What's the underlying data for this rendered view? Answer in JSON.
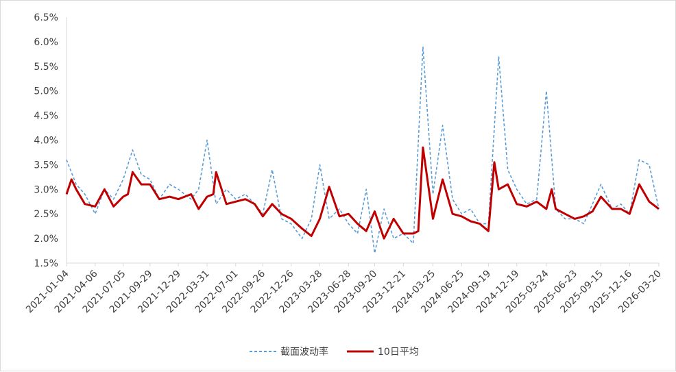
{
  "chart_data": {
    "type": "line",
    "title": "",
    "xlabel": "",
    "ylabel": "",
    "ylim": [
      0.015,
      0.065
    ],
    "y_format": "percent_1dp",
    "y_ticks": [
      "1.5%",
      "2.0%",
      "2.5%",
      "3.0%",
      "3.5%",
      "4.0%",
      "4.5%",
      "5.0%",
      "5.5%",
      "6.0%",
      "6.5%"
    ],
    "x_tick_labels": [
      "2021-01-04",
      "2021-04-06",
      "2021-07-05",
      "2021-09-29",
      "2021-12-29",
      "2022-03-31",
      "2022-07-01",
      "2022-09-26",
      "2022-12-26",
      "2023-03-28",
      "2023-06-28",
      "2023-09-20",
      "2023-12-21",
      "2024-03-25",
      "2024-06-25",
      "2024-09-19",
      "2024-12-19",
      "2025-03-24",
      "2025-06-23",
      "2025-09-15",
      "2025-12-16",
      "2026-03-20"
    ],
    "grid": false,
    "legend_position": "bottom",
    "series": [
      {
        "name": "截面波动率",
        "color": "#5b9bd5",
        "style": "dashed",
        "x": [
          "2021-01-04",
          "2021-02-04",
          "2021-03-04",
          "2021-04-06",
          "2021-05-06",
          "2021-06-04",
          "2021-07-05",
          "2021-08-04",
          "2021-09-01",
          "2021-09-29",
          "2021-10-29",
          "2021-12-01",
          "2021-12-29",
          "2022-02-08",
          "2022-03-04",
          "2022-03-31",
          "2022-04-29",
          "2022-06-01",
          "2022-07-01",
          "2022-08-01",
          "2022-08-31",
          "2022-09-26",
          "2022-10-26",
          "2022-11-25",
          "2022-12-26",
          "2023-01-30",
          "2023-03-01",
          "2023-03-28",
          "2023-04-27",
          "2023-05-30",
          "2023-06-28",
          "2023-07-27",
          "2023-08-24",
          "2023-09-20",
          "2023-10-20",
          "2023-11-20",
          "2023-12-21",
          "2024-01-22",
          "2024-02-22",
          "2024-03-25",
          "2024-04-25",
          "2024-05-27",
          "2024-06-25",
          "2024-07-24",
          "2024-08-22",
          "2024-09-19",
          "2024-10-22",
          "2024-11-20",
          "2024-12-19",
          "2025-01-20",
          "2025-02-21",
          "2025-03-24",
          "2025-04-23",
          "2025-05-23",
          "2025-06-23",
          "2025-07-22",
          "2025-08-19",
          "2025-09-15",
          "2025-10-21",
          "2025-11-18",
          "2025-12-16",
          "2026-01-16",
          "2026-02-17",
          "2026-03-20"
        ],
        "values": [
          0.036,
          0.031,
          0.029,
          0.025,
          0.03,
          0.028,
          0.032,
          0.038,
          0.033,
          0.032,
          0.028,
          0.031,
          0.03,
          0.028,
          0.03,
          0.04,
          0.027,
          0.03,
          0.028,
          0.029,
          0.027,
          0.025,
          0.034,
          0.024,
          0.023,
          0.02,
          0.024,
          0.035,
          0.024,
          0.026,
          0.023,
          0.021,
          0.03,
          0.017,
          0.026,
          0.02,
          0.021,
          0.019,
          0.059,
          0.029,
          0.043,
          0.028,
          0.025,
          0.026,
          0.023,
          0.023,
          0.057,
          0.034,
          0.03,
          0.027,
          0.028,
          0.05,
          0.026,
          0.024,
          0.024,
          0.023,
          0.027,
          0.031,
          0.026,
          0.027,
          0.025,
          0.036,
          0.035,
          0.026
        ]
      },
      {
        "name": "10日平均",
        "color": "#c00000",
        "style": "solid",
        "x": [
          "2021-01-04",
          "2021-01-20",
          "2021-02-04",
          "2021-03-04",
          "2021-04-06",
          "2021-05-06",
          "2021-06-04",
          "2021-07-05",
          "2021-07-20",
          "2021-08-04",
          "2021-09-01",
          "2021-09-29",
          "2021-10-29",
          "2021-12-01",
          "2021-12-29",
          "2022-02-08",
          "2022-03-04",
          "2022-03-31",
          "2022-04-20",
          "2022-04-29",
          "2022-06-01",
          "2022-07-01",
          "2022-08-01",
          "2022-08-31",
          "2022-09-26",
          "2022-10-26",
          "2022-11-25",
          "2022-12-26",
          "2023-01-30",
          "2023-03-01",
          "2023-03-28",
          "2023-04-27",
          "2023-05-30",
          "2023-06-28",
          "2023-07-27",
          "2023-08-24",
          "2023-09-20",
          "2023-10-20",
          "2023-11-20",
          "2023-12-21",
          "2024-01-22",
          "2024-02-07",
          "2024-02-22",
          "2024-03-25",
          "2024-04-25",
          "2024-05-27",
          "2024-06-25",
          "2024-07-24",
          "2024-08-22",
          "2024-09-19",
          "2024-10-08",
          "2024-10-22",
          "2024-11-20",
          "2024-12-19",
          "2025-01-20",
          "2025-02-21",
          "2025-03-24",
          "2025-04-10",
          "2025-04-23",
          "2025-05-23",
          "2025-06-23",
          "2025-07-22",
          "2025-08-19",
          "2025-09-15",
          "2025-10-21",
          "2025-11-18",
          "2025-12-16",
          "2026-01-16",
          "2026-02-17",
          "2026-03-20"
        ],
        "values": [
          0.029,
          0.032,
          0.03,
          0.027,
          0.0265,
          0.03,
          0.0265,
          0.0285,
          0.029,
          0.0335,
          0.031,
          0.031,
          0.028,
          0.0285,
          0.028,
          0.029,
          0.026,
          0.0285,
          0.029,
          0.0335,
          0.027,
          0.0275,
          0.028,
          0.027,
          0.0245,
          0.027,
          0.025,
          0.024,
          0.022,
          0.0205,
          0.024,
          0.0305,
          0.0245,
          0.025,
          0.023,
          0.0215,
          0.0255,
          0.02,
          0.024,
          0.021,
          0.021,
          0.0215,
          0.0385,
          0.024,
          0.032,
          0.025,
          0.0245,
          0.0235,
          0.023,
          0.0215,
          0.0355,
          0.03,
          0.031,
          0.027,
          0.0265,
          0.0275,
          0.026,
          0.03,
          0.026,
          0.025,
          0.024,
          0.0245,
          0.0255,
          0.0285,
          0.026,
          0.026,
          0.025,
          0.031,
          0.0275,
          0.026
        ]
      }
    ]
  }
}
